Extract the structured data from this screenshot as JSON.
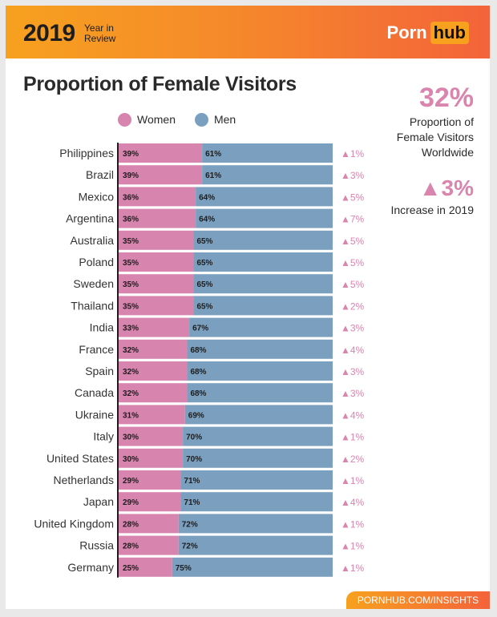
{
  "header": {
    "year": "2019",
    "year_in_review": "Year in Review",
    "logo_part1": "Porn",
    "logo_part2": "hub"
  },
  "colors": {
    "women": "#d785ae",
    "men": "#7b9fbe",
    "accent": "#d985ae",
    "header_start": "#f7a11f",
    "header_end": "#f4633a"
  },
  "stats": {
    "worldwide_value": "32%",
    "worldwide_text": "Proportion of Female Visitors Worldwide",
    "increase_value": "▲3%",
    "increase_text": "Increase in 2019"
  },
  "footer": {
    "link": "PORNHUB.COM/INSIGHTS"
  },
  "chart_data": {
    "type": "bar",
    "stacked": true,
    "orientation": "horizontal",
    "title": "Proportion of Female Visitors",
    "categories": [
      "Philippines",
      "Brazil",
      "Mexico",
      "Argentina",
      "Australia",
      "Poland",
      "Sweden",
      "Thailand",
      "India",
      "France",
      "Spain",
      "Canada",
      "Ukraine",
      "Italy",
      "United States",
      "Netherlands",
      "Japan",
      "United Kingdom",
      "Russia",
      "Germany"
    ],
    "series": [
      {
        "name": "Women",
        "values": [
          39,
          39,
          36,
          36,
          35,
          35,
          35,
          35,
          33,
          32,
          32,
          32,
          31,
          30,
          30,
          29,
          29,
          28,
          28,
          25
        ]
      },
      {
        "name": "Men",
        "values": [
          61,
          61,
          64,
          64,
          65,
          65,
          65,
          65,
          67,
          68,
          68,
          68,
          69,
          70,
          70,
          71,
          71,
          72,
          72,
          75
        ]
      }
    ],
    "changes": [
      "▲1%",
      "▲3%",
      "▲5%",
      "▲7%",
      "▲5%",
      "▲5%",
      "▲5%",
      "▲2%",
      "▲3%",
      "▲4%",
      "▲3%",
      "▲3%",
      "▲4%",
      "▲1%",
      "▲2%",
      "▲1%",
      "▲4%",
      "▲1%",
      "▲1%",
      "▲1%"
    ],
    "xlim": [
      0,
      100
    ],
    "legend": "top"
  }
}
